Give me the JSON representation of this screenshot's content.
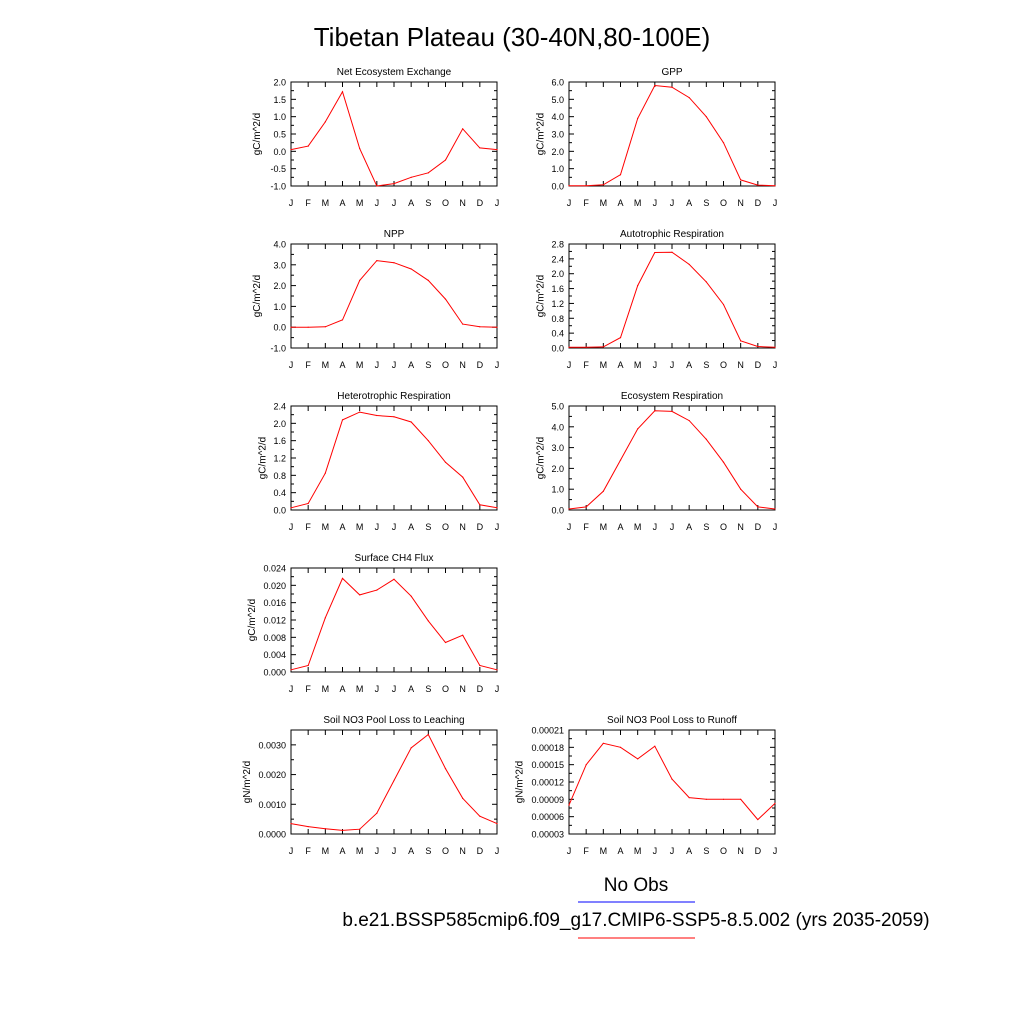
{
  "figure": {
    "title": "Tibetan Plateau (30-40N,80-100E)",
    "legend": {
      "obs_label": "No Obs",
      "obs_color": "#0000ff",
      "model_label": "b.e21.BSSP585cmip6.f09_g17.CMIP6-SSP5-8.5.002 (yrs 2035-2059)",
      "model_color": "#ff0000"
    },
    "line_color": "#ff0000"
  },
  "chart_data": [
    {
      "type": "line",
      "title": "Net Ecosystem Exchange",
      "ylabel": "gC/m^2/d",
      "x": [
        "J",
        "F",
        "M",
        "A",
        "M",
        "J",
        "J",
        "A",
        "S",
        "O",
        "N",
        "D",
        "J"
      ],
      "ylim": [
        -1.0,
        2.0
      ],
      "yticks": [
        -1.0,
        -0.5,
        0.0,
        0.5,
        1.0,
        1.5,
        2.0
      ],
      "ytick_labels": [
        "-1.0",
        "-0.5",
        "0.0",
        "0.5",
        "1.0",
        "1.5",
        "2.0"
      ],
      "series": [
        {
          "values": [
            0.05,
            0.15,
            0.85,
            1.72,
            0.08,
            -1.0,
            -0.93,
            -0.75,
            -0.62,
            -0.25,
            0.65,
            0.1,
            0.05
          ]
        }
      ]
    },
    {
      "type": "line",
      "title": "GPP",
      "ylabel": "gC/m^2/d",
      "x": [
        "J",
        "F",
        "M",
        "A",
        "M",
        "J",
        "J",
        "A",
        "S",
        "O",
        "N",
        "D",
        "J"
      ],
      "ylim": [
        0.0,
        6.0
      ],
      "yticks": [
        0,
        1,
        2,
        3,
        4,
        5,
        6
      ],
      "ytick_labels": [
        "0.0",
        "1.0",
        "2.0",
        "3.0",
        "4.0",
        "5.0",
        "6.0"
      ],
      "series": [
        {
          "values": [
            0.02,
            0.02,
            0.07,
            0.65,
            3.9,
            5.8,
            5.7,
            5.1,
            4.0,
            2.5,
            0.35,
            0.05,
            0.02
          ]
        }
      ]
    },
    {
      "type": "line",
      "title": "NPP",
      "ylabel": "gC/m^2/d",
      "x": [
        "J",
        "F",
        "M",
        "A",
        "M",
        "J",
        "J",
        "A",
        "S",
        "O",
        "N",
        "D",
        "J"
      ],
      "ylim": [
        -1.0,
        4.0
      ],
      "yticks": [
        -1,
        0,
        1,
        2,
        3,
        4
      ],
      "ytick_labels": [
        "-1.0",
        "0.0",
        "1.0",
        "2.0",
        "3.0",
        "4.0"
      ],
      "series": [
        {
          "values": [
            0.0,
            0.0,
            0.02,
            0.35,
            2.25,
            3.2,
            3.1,
            2.8,
            2.25,
            1.35,
            0.15,
            0.02,
            0.0
          ]
        }
      ]
    },
    {
      "type": "line",
      "title": "Autotrophic Respiration",
      "ylabel": "gC/m^2/d",
      "x": [
        "J",
        "F",
        "M",
        "A",
        "M",
        "J",
        "J",
        "A",
        "S",
        "O",
        "N",
        "D",
        "J"
      ],
      "ylim": [
        0.0,
        2.8
      ],
      "yticks": [
        0,
        0.4,
        0.8,
        1.2,
        1.6,
        2.0,
        2.4,
        2.8
      ],
      "ytick_labels": [
        "0.0",
        "0.4",
        "0.8",
        "1.2",
        "1.6",
        "2.0",
        "2.4",
        "2.8"
      ],
      "series": [
        {
          "values": [
            0.02,
            0.02,
            0.03,
            0.28,
            1.68,
            2.57,
            2.58,
            2.25,
            1.78,
            1.17,
            0.19,
            0.04,
            0.02
          ]
        }
      ]
    },
    {
      "type": "line",
      "title": "Heterotrophic Respiration",
      "ylabel": "gC/m^2/d",
      "x": [
        "J",
        "F",
        "M",
        "A",
        "M",
        "J",
        "J",
        "A",
        "S",
        "O",
        "N",
        "D",
        "J"
      ],
      "ylim": [
        0.0,
        2.4
      ],
      "yticks": [
        0,
        0.4,
        0.8,
        1.2,
        1.6,
        2.0,
        2.4
      ],
      "ytick_labels": [
        "0.0",
        "0.4",
        "0.8",
        "1.2",
        "1.6",
        "2.0",
        "2.4"
      ],
      "series": [
        {
          "values": [
            0.05,
            0.15,
            0.85,
            2.08,
            2.26,
            2.18,
            2.15,
            2.03,
            1.6,
            1.1,
            0.76,
            0.12,
            0.05
          ]
        }
      ]
    },
    {
      "type": "line",
      "title": "Ecosystem Respiration",
      "ylabel": "gC/m^2/d",
      "x": [
        "J",
        "F",
        "M",
        "A",
        "M",
        "J",
        "J",
        "A",
        "S",
        "O",
        "N",
        "D",
        "J"
      ],
      "ylim": [
        0.0,
        5.0
      ],
      "yticks": [
        0,
        1,
        2,
        3,
        4,
        5
      ],
      "ytick_labels": [
        "0.0",
        "1.0",
        "2.0",
        "3.0",
        "4.0",
        "5.0"
      ],
      "series": [
        {
          "values": [
            0.05,
            0.15,
            0.9,
            2.4,
            3.9,
            4.77,
            4.74,
            4.3,
            3.4,
            2.3,
            1.0,
            0.15,
            0.05
          ]
        }
      ]
    },
    {
      "type": "line",
      "title": "Surface CH4 Flux",
      "ylabel": "gC/m^2/d",
      "x": [
        "J",
        "F",
        "M",
        "A",
        "M",
        "J",
        "J",
        "A",
        "S",
        "O",
        "N",
        "D",
        "J"
      ],
      "ylim": [
        0.0,
        0.024
      ],
      "yticks": [
        0,
        0.004,
        0.008,
        0.012,
        0.016,
        0.02,
        0.024
      ],
      "ytick_labels": [
        "0.000",
        "0.004",
        "0.008",
        "0.012",
        "0.016",
        "0.020",
        "0.024"
      ],
      "series": [
        {
          "values": [
            0.0005,
            0.0015,
            0.0125,
            0.0216,
            0.0178,
            0.0189,
            0.0214,
            0.0175,
            0.0118,
            0.0068,
            0.0085,
            0.0015,
            0.0005
          ]
        }
      ]
    },
    {
      "type": "line",
      "title": "Soil NO3 Pool Loss to Leaching",
      "ylabel": "gN/m^2/d",
      "x": [
        "J",
        "F",
        "M",
        "A",
        "M",
        "J",
        "J",
        "A",
        "S",
        "O",
        "N",
        "D",
        "J"
      ],
      "ylim": [
        0.0,
        0.0035
      ],
      "yticks": [
        0,
        0.001,
        0.002,
        0.003
      ],
      "ytick_labels": [
        "0.0000",
        "0.0010",
        "0.0020",
        "0.0030"
      ],
      "series": [
        {
          "values": [
            0.00035,
            0.00025,
            0.00018,
            0.00012,
            0.00016,
            0.0007,
            0.0018,
            0.0029,
            0.00335,
            0.0022,
            0.0012,
            0.0006,
            0.00035
          ]
        }
      ]
    },
    {
      "type": "line",
      "title": "Soil NO3 Pool Loss to Runoff",
      "ylabel": "gN/m^2/d",
      "x": [
        "J",
        "F",
        "M",
        "A",
        "M",
        "J",
        "J",
        "A",
        "S",
        "O",
        "N",
        "D",
        "J"
      ],
      "ylim": [
        3e-05,
        0.00021
      ],
      "yticks": [
        3e-05,
        6e-05,
        9e-05,
        0.00012,
        0.00015,
        0.00018,
        0.00021
      ],
      "ytick_labels": [
        "0.00003",
        "0.00006",
        "0.00009",
        "0.00012",
        "0.00015",
        "0.00018",
        "0.00021"
      ],
      "series": [
        {
          "values": [
            8e-05,
            0.00015,
            0.000187,
            0.00018,
            0.00016,
            0.000182,
            0.000125,
            9.3e-05,
            9e-05,
            9e-05,
            9e-05,
            5.5e-05,
            8.3e-05
          ]
        }
      ]
    }
  ]
}
